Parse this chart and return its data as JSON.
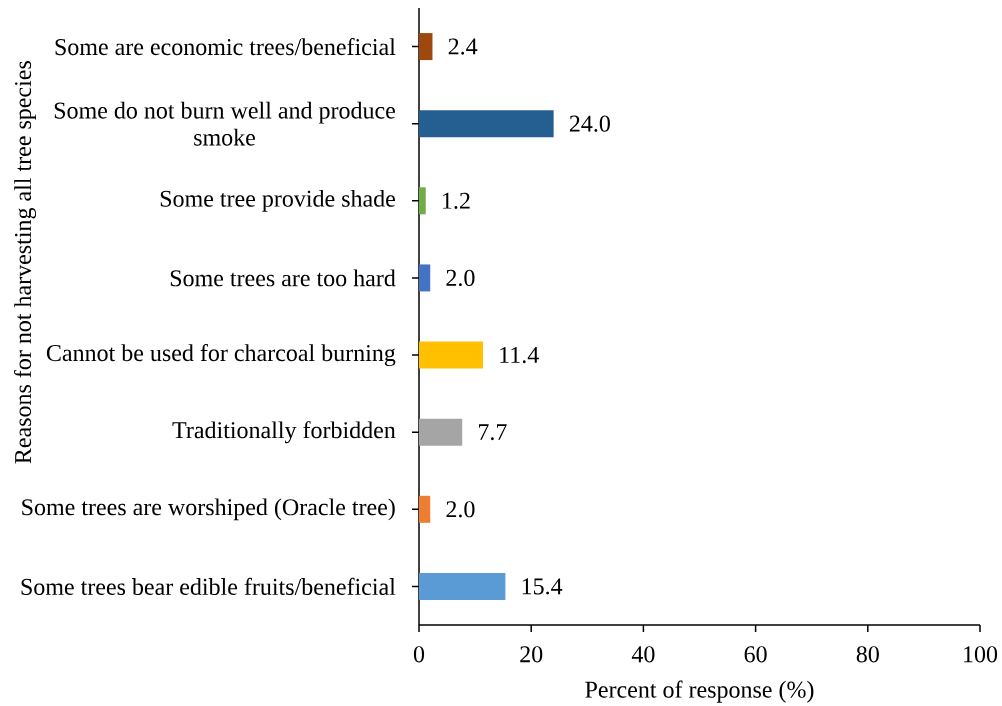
{
  "chart_data": {
    "type": "bar",
    "orientation": "horizontal",
    "xlabel": "Percent of response (%)",
    "ylabel": "Reasons for not harvesting all tree species",
    "categories": [
      "Some are economic trees/beneficial",
      "Some do not burn well and produce smoke",
      "Some tree provide shade",
      "Some trees are too hard",
      "Cannot be used for charcoal burning",
      "Traditionally forbidden",
      "Some trees are worshiped (Oracle tree)",
      "Some trees bear edible fruits/beneficial"
    ],
    "values": [
      2.4,
      24.0,
      1.2,
      2.0,
      11.4,
      7.7,
      2.0,
      15.4
    ],
    "colors": [
      "#9e480e",
      "#255e91",
      "#70ad47",
      "#4472c4",
      "#ffc000",
      "#a5a5a5",
      "#ed7d31",
      "#5b9bd5"
    ],
    "value_labels": [
      "2.4",
      "24.0",
      "1.2",
      "2.0",
      "11.4",
      "7.7",
      "2.0",
      "15.4"
    ],
    "xlim": [
      0,
      100
    ],
    "xticks": [
      0,
      20,
      40,
      60,
      80,
      100
    ]
  }
}
